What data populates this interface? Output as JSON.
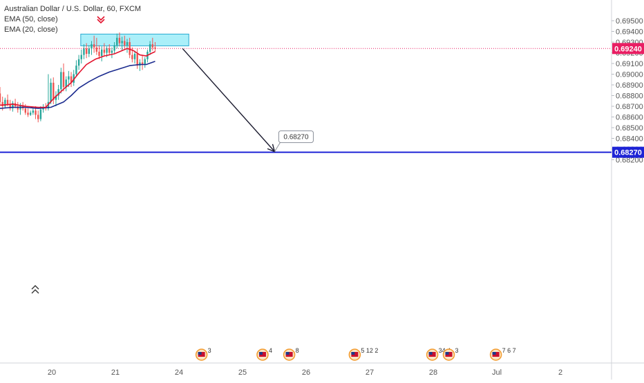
{
  "legend": {
    "symbol": "Australian Dollar / U.S. Dollar, 60, FXCM",
    "ema50": "EMA (50, close)",
    "ema20": "EMA (20, close)"
  },
  "colors": {
    "bull": "#26a69a",
    "bear": "#ef5350",
    "ema20": "#e3122c",
    "ema50": "#1a2a8e",
    "zone_fill": "#8fe9f7",
    "zone_stroke": "#26a9d0",
    "target_line": "#1e24d6",
    "price_badge": "#e91e63",
    "arrow": "#1a1a2e",
    "axis_text": "#555555",
    "grid": "#eef0f3"
  },
  "chart_data": {
    "type": "candlestick",
    "title": "Australian Dollar / U.S. Dollar, 60, FXCM",
    "ylim": [
      0.6815,
      0.696
    ],
    "y_ticks": [
      "0.69500",
      "0.69400",
      "0.69300",
      "0.69200",
      "0.69100",
      "0.69000",
      "0.68900",
      "0.68800",
      "0.68700",
      "0.68600",
      "0.68500",
      "0.68400",
      "0.68300",
      "0.68200"
    ],
    "x_ticks": [
      "20",
      "21",
      "24",
      "25",
      "26",
      "27",
      "28",
      "Jul",
      "2"
    ],
    "x_tick_days": [
      1,
      2,
      3,
      4,
      5,
      6,
      7,
      8,
      9
    ],
    "current_price": "0.69240",
    "target_price": "0.68270",
    "target_label": "0.68270",
    "supply_zone": {
      "x_start": 1.52,
      "x_end": 3.22,
      "y_low": 0.69265,
      "y_high": 0.69375
    },
    "projection_arrow": {
      "from": [
        2.98,
        0.6924
      ],
      "to": [
        4.32,
        0.6827
      ]
    },
    "candles": [
      [
        0.0,
        0.6882,
        0.6888,
        0.6871,
        0.6874
      ],
      [
        0.04,
        0.6874,
        0.6879,
        0.6866,
        0.687
      ],
      [
        0.08,
        0.687,
        0.6878,
        0.6868,
        0.6876
      ],
      [
        0.12,
        0.6876,
        0.6881,
        0.687,
        0.6872
      ],
      [
        0.16,
        0.6872,
        0.6876,
        0.6866,
        0.6868
      ],
      [
        0.2,
        0.6868,
        0.6875,
        0.6865,
        0.6873
      ],
      [
        0.24,
        0.6873,
        0.6877,
        0.6868,
        0.687
      ],
      [
        0.28,
        0.687,
        0.6874,
        0.6864,
        0.6867
      ],
      [
        0.32,
        0.6867,
        0.6873,
        0.6862,
        0.6871
      ],
      [
        0.36,
        0.6871,
        0.6874,
        0.6866,
        0.6868
      ],
      [
        0.4,
        0.6868,
        0.6872,
        0.6862,
        0.6864
      ],
      [
        0.44,
        0.6864,
        0.6868,
        0.686,
        0.6862
      ],
      [
        0.48,
        0.6862,
        0.6866,
        0.6861,
        0.6864
      ],
      [
        0.52,
        0.6864,
        0.6868,
        0.6862,
        0.6866
      ],
      [
        0.56,
        0.6866,
        0.687,
        0.6858,
        0.6862
      ],
      [
        0.6,
        0.6862,
        0.6866,
        0.6855,
        0.6858
      ],
      [
        0.64,
        0.6858,
        0.687,
        0.6856,
        0.6867
      ],
      [
        0.68,
        0.6867,
        0.6872,
        0.6864,
        0.6869
      ],
      [
        0.72,
        0.6869,
        0.6873,
        0.6866,
        0.6868
      ],
      [
        0.76,
        0.6868,
        0.69,
        0.6866,
        0.6874
      ],
      [
        0.8,
        0.6874,
        0.6896,
        0.6872,
        0.6892
      ],
      [
        0.84,
        0.6892,
        0.6897,
        0.6872,
        0.6876
      ],
      [
        0.88,
        0.6876,
        0.6884,
        0.687,
        0.688
      ],
      [
        0.92,
        0.688,
        0.689,
        0.6876,
        0.6886
      ],
      [
        0.96,
        0.6886,
        0.6906,
        0.6882,
        0.6902
      ],
      [
        1.0,
        0.6902,
        0.691,
        0.6884,
        0.6888
      ],
      [
        1.04,
        0.6888,
        0.6898,
        0.6884,
        0.6895
      ],
      [
        1.08,
        0.6895,
        0.6903,
        0.6888,
        0.6898
      ],
      [
        1.12,
        0.6898,
        0.6902,
        0.6888,
        0.6892
      ],
      [
        1.16,
        0.6892,
        0.6904,
        0.6889,
        0.69
      ],
      [
        1.2,
        0.69,
        0.6913,
        0.6898,
        0.6908
      ],
      [
        1.24,
        0.6908,
        0.6918,
        0.6904,
        0.6914
      ],
      [
        1.28,
        0.6914,
        0.6923,
        0.691,
        0.6918
      ],
      [
        1.32,
        0.6918,
        0.6928,
        0.6914,
        0.6924
      ],
      [
        1.36,
        0.6924,
        0.6929,
        0.6915,
        0.6919
      ],
      [
        1.4,
        0.6919,
        0.6927,
        0.6916,
        0.6924
      ],
      [
        1.44,
        0.6924,
        0.6931,
        0.6918,
        0.6928
      ],
      [
        1.48,
        0.6928,
        0.6936,
        0.692,
        0.6925
      ],
      [
        1.52,
        0.6925,
        0.6934,
        0.6918,
        0.6921
      ],
      [
        1.56,
        0.6921,
        0.6927,
        0.6914,
        0.6917
      ],
      [
        1.6,
        0.6917,
        0.6926,
        0.6912,
        0.6923
      ],
      [
        1.64,
        0.6923,
        0.6929,
        0.6917,
        0.692
      ],
      [
        1.68,
        0.692,
        0.6926,
        0.6916,
        0.6924
      ],
      [
        1.72,
        0.6924,
        0.6928,
        0.6918,
        0.692
      ],
      [
        1.76,
        0.692,
        0.6925,
        0.6915,
        0.6922
      ],
      [
        1.8,
        0.6922,
        0.693,
        0.6919,
        0.6927
      ],
      [
        1.84,
        0.6927,
        0.6938,
        0.6924,
        0.6934
      ],
      [
        1.88,
        0.6934,
        0.6939,
        0.6926,
        0.6929
      ],
      [
        1.92,
        0.6929,
        0.6935,
        0.6922,
        0.6931
      ],
      [
        1.96,
        0.6931,
        0.6936,
        0.6924,
        0.6927
      ],
      [
        2.0,
        0.6927,
        0.6933,
        0.692,
        0.693
      ],
      [
        2.04,
        0.693,
        0.6934,
        0.6915,
        0.6918
      ],
      [
        2.08,
        0.6918,
        0.6925,
        0.6911,
        0.6914
      ],
      [
        2.12,
        0.6914,
        0.6922,
        0.691,
        0.6919
      ],
      [
        2.16,
        0.6919,
        0.6924,
        0.6905,
        0.6908
      ],
      [
        2.2,
        0.6908,
        0.6914,
        0.6903,
        0.6911
      ],
      [
        2.24,
        0.6911,
        0.6918,
        0.6904,
        0.6909
      ],
      [
        2.28,
        0.6909,
        0.6916,
        0.6906,
        0.6914
      ],
      [
        2.32,
        0.6914,
        0.6923,
        0.6911,
        0.6921
      ],
      [
        2.36,
        0.6921,
        0.6931,
        0.6918,
        0.6928
      ],
      [
        2.4,
        0.6928,
        0.6934,
        0.6922,
        0.6925
      ],
      [
        2.44,
        0.6925,
        0.693,
        0.6921,
        0.6924
      ]
    ],
    "ema20": [
      [
        0.0,
        0.6871
      ],
      [
        0.2,
        0.6872
      ],
      [
        0.4,
        0.687
      ],
      [
        0.6,
        0.6869
      ],
      [
        0.72,
        0.6869
      ],
      [
        0.84,
        0.6877
      ],
      [
        1.0,
        0.6886
      ],
      [
        1.12,
        0.6892
      ],
      [
        1.24,
        0.6901
      ],
      [
        1.36,
        0.6909
      ],
      [
        1.5,
        0.6914
      ],
      [
        1.64,
        0.6917
      ],
      [
        1.8,
        0.6919
      ],
      [
        1.92,
        0.6922
      ],
      [
        2.0,
        0.6924
      ],
      [
        2.1,
        0.6922
      ],
      [
        2.2,
        0.6918
      ],
      [
        2.3,
        0.6917
      ],
      [
        2.4,
        0.692
      ],
      [
        2.44,
        0.6921
      ]
    ],
    "ema50": [
      [
        0.0,
        0.6868
      ],
      [
        0.2,
        0.6869
      ],
      [
        0.4,
        0.6869
      ],
      [
        0.6,
        0.6868
      ],
      [
        0.8,
        0.6869
      ],
      [
        1.0,
        0.6874
      ],
      [
        1.12,
        0.688
      ],
      [
        1.24,
        0.6887
      ],
      [
        1.4,
        0.6893
      ],
      [
        1.56,
        0.6898
      ],
      [
        1.72,
        0.6902
      ],
      [
        1.88,
        0.6905
      ],
      [
        2.04,
        0.6908
      ],
      [
        2.2,
        0.6909
      ],
      [
        2.3,
        0.6909
      ],
      [
        2.44,
        0.6912
      ]
    ],
    "event_markers": [
      {
        "x": 3.42,
        "label": "3"
      },
      {
        "x": 4.38,
        "label": "4"
      },
      {
        "x": 4.8,
        "label": "8"
      },
      {
        "x": 5.83,
        "label": "5 12 2"
      },
      {
        "x": 7.05,
        "label": "34 4"
      },
      {
        "x": 7.31,
        "label": "3"
      },
      {
        "x": 8.05,
        "label": "7 6 7"
      }
    ]
  }
}
